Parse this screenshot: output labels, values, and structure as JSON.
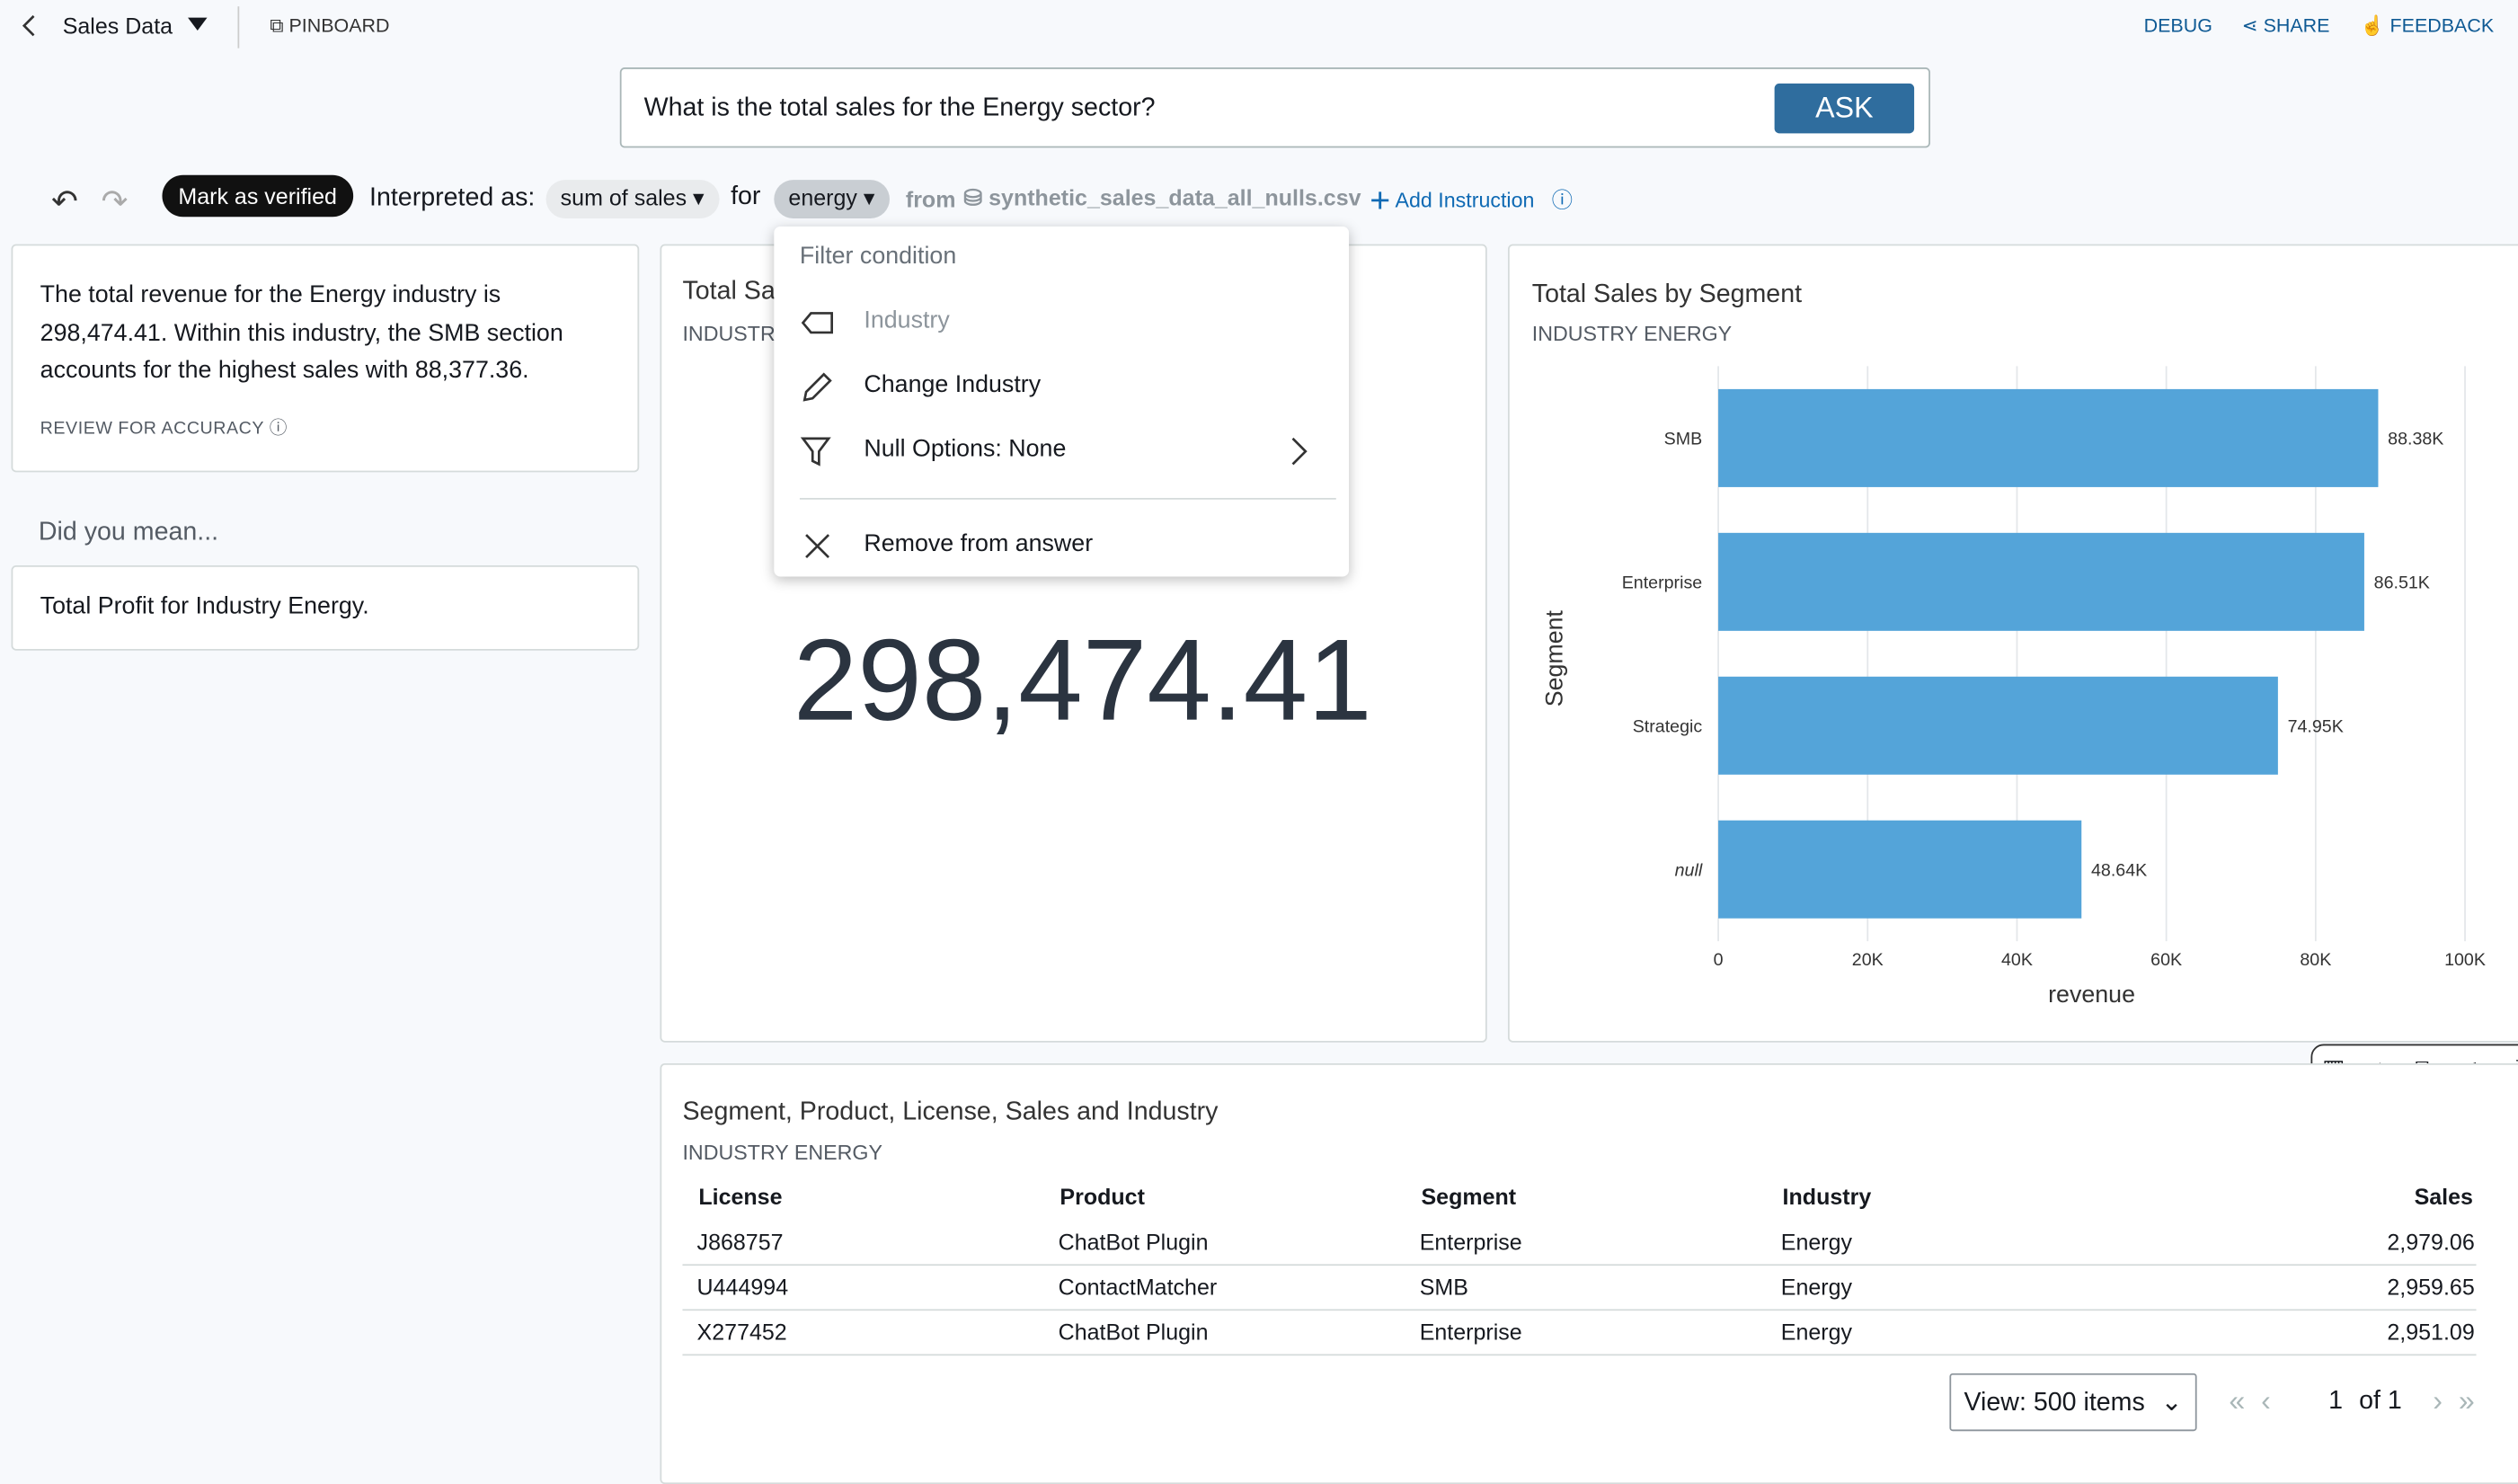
{
  "header": {
    "dataset": "Sales Data",
    "pinboard": "PINBOARD",
    "debug": "DEBUG",
    "share": "SHARE",
    "feedback": "FEEDBACK"
  },
  "question": {
    "text": "What is the total sales for the Energy sector?",
    "button": "ASK"
  },
  "interpretation": {
    "verify": "Mark as verified",
    "label": "Interpreted as:",
    "metric": "sum of sales",
    "for": "for",
    "filter": "energy",
    "from": "from",
    "source": "synthetic_sales_data_all_nulls.csv",
    "add": "Add Instruction"
  },
  "menu": {
    "heading": "Filter condition",
    "items": [
      "Industry",
      "Change Industry",
      "Null Options: None",
      "Remove from answer"
    ]
  },
  "summary": {
    "text": "The total revenue for the Energy industry is 298,474.41. Within this industry, the SMB section accounts for the highest sales with 88,377.36.",
    "review": "REVIEW FOR ACCURACY"
  },
  "suggestions": {
    "heading": "Did you mean...",
    "items": [
      "Total Profit for Industry Energy."
    ]
  },
  "kpi": {
    "title": "Total Sales",
    "subtitle": "INDUSTRY ENERGY",
    "value": "298,474.41"
  },
  "chart_data": {
    "type": "hbar",
    "title": "Total Sales by Segment",
    "subtitle": "INDUSTRY ENERGY",
    "x_label": "revenue",
    "y_label": "Segment",
    "categories": [
      "SMB",
      "Enterprise",
      "Strategic",
      "null"
    ],
    "values": [
      88377.36,
      86510,
      74950,
      48640
    ],
    "value_labels": [
      "88.38K",
      "86.51K",
      "74.95K",
      "48.64K"
    ],
    "color": "#54a4d9",
    "xlim": [
      0,
      100000
    ],
    "xticks": [
      0,
      {
        "value": 20000,
        "label": "20K"
      },
      {
        "value": 40000,
        "label": "40K"
      },
      {
        "value": 60000,
        "label": "60K"
      },
      {
        "value": 80000,
        "label": "80K"
      },
      {
        "value": 100000,
        "label": "100K"
      }
    ],
    "grid": true
  },
  "table": {
    "title": "Segment, Product, License, Sales and Industry",
    "subtitle": "INDUSTRY ENERGY",
    "columns": [
      "License",
      "Product",
      "Segment",
      "Industry",
      "Sales"
    ],
    "rows": [
      [
        "J868757",
        "ChatBot Plugin",
        "Enterprise",
        "Energy",
        "2,979.06"
      ],
      [
        "U444994",
        "ContactMatcher",
        "SMB",
        "Energy",
        "2,959.65"
      ],
      [
        "X277452",
        "ChatBot Plugin",
        "Enterprise",
        "Energy",
        "2,951.09"
      ]
    ]
  },
  "pagination": {
    "view": "View: 500 items",
    "page": "1",
    "of": "of 1"
  }
}
